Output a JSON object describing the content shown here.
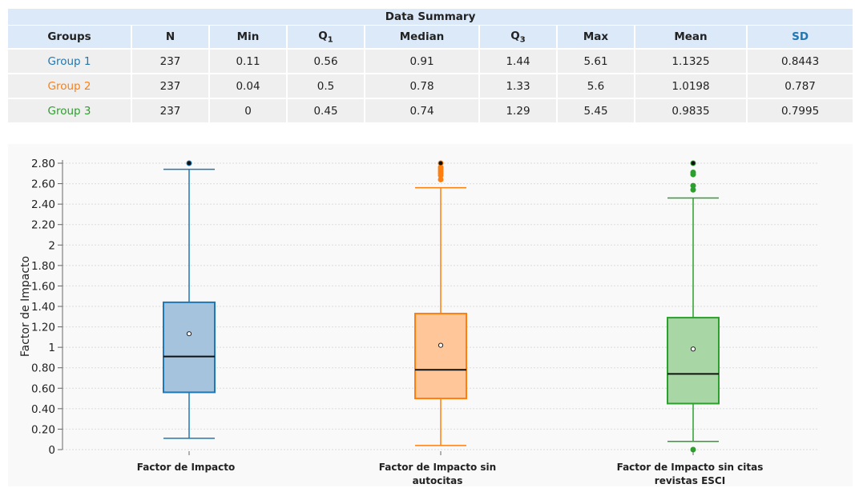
{
  "summary": {
    "title": "Data Summary",
    "headers": [
      "Groups",
      "N",
      "Min",
      "Q1",
      "Median",
      "Q3",
      "Max",
      "Mean",
      "SD"
    ],
    "rows": [
      {
        "group": "Group 1",
        "n": "237",
        "min": "0.11",
        "q1": "0.56",
        "median": "0.91",
        "q3": "1.44",
        "max": "5.61",
        "mean": "1.1325",
        "sd": "0.8443"
      },
      {
        "group": "Group 2",
        "n": "237",
        "min": "0.04",
        "q1": "0.5",
        "median": "0.78",
        "q3": "1.33",
        "max": "5.6",
        "mean": "1.0198",
        "sd": "0.787"
      },
      {
        "group": "Group 3",
        "n": "237",
        "min": "0",
        "q1": "0.45",
        "median": "0.74",
        "q3": "1.29",
        "max": "5.45",
        "mean": "0.9835",
        "sd": "0.7995"
      }
    ]
  },
  "chart_data": {
    "type": "box",
    "title": "",
    "xlabel": "",
    "ylabel": "Factor de Impacto",
    "ylim": [
      0,
      2.8
    ],
    "yticks": [
      0,
      0.2,
      0.4,
      0.6,
      0.8,
      1,
      1.2,
      1.4,
      1.6,
      1.8,
      2,
      2.2,
      2.4,
      2.6,
      2.8
    ],
    "ytick_labels": [
      "0",
      "0.20",
      "0.40",
      "0.60",
      "0.80",
      "1",
      "1.20",
      "1.40",
      "1.60",
      "1.80",
      "2",
      "2.20",
      "2.40",
      "2.60",
      "2.80"
    ],
    "grid": true,
    "categories": [
      [
        "Factor de Impacto"
      ],
      [
        "Factor de Impacto sin",
        "autocitas"
      ],
      [
        "Factor de Impacto sin citas",
        "revistas ESCI"
      ]
    ],
    "series": [
      {
        "color": "#1f77b4",
        "fill": "#a6c3dd",
        "whisker_low": 0.11,
        "q1": 0.56,
        "median": 0.91,
        "q3": 1.44,
        "whisker_high": 2.74,
        "mean": 1.1325,
        "outliers": [
          2.8
        ]
      },
      {
        "color": "#ff7f0e",
        "fill": "#ffc69a",
        "whisker_low": 0.04,
        "q1": 0.5,
        "median": 0.78,
        "q3": 1.33,
        "whisker_high": 2.56,
        "mean": 1.0198,
        "outliers": [
          2.64,
          2.68,
          2.7,
          2.72,
          2.74,
          2.76,
          2.8
        ]
      },
      {
        "color": "#2ca02c",
        "fill": "#a9d6a5",
        "whisker_low": 0.08,
        "q1": 0.45,
        "median": 0.74,
        "q3": 1.29,
        "whisker_high": 2.46,
        "mean": 0.9835,
        "outliers": [
          0,
          2.54,
          2.58,
          2.69,
          2.71,
          2.8
        ]
      }
    ]
  },
  "colors": {
    "group1": "#1f77b4",
    "group2": "#ff7f0e",
    "group3": "#2ca02c",
    "header_bg": "#dbe9f9",
    "cell_bg": "#efefef"
  }
}
